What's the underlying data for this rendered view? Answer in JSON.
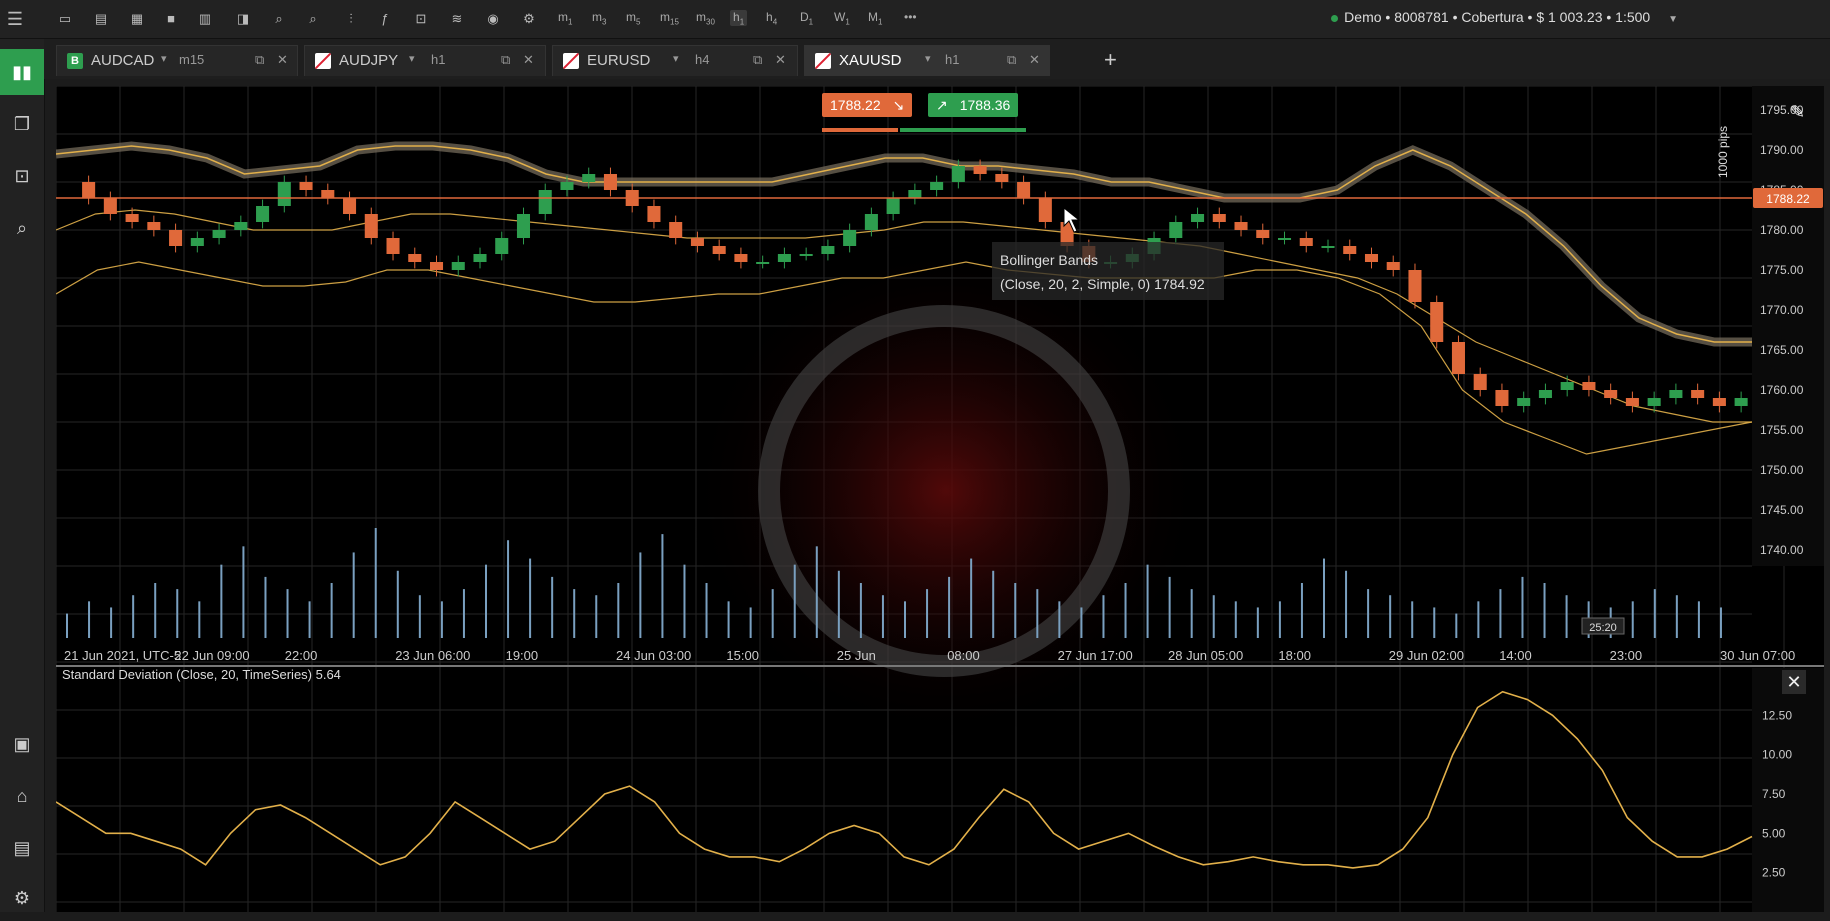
{
  "toolbar": {
    "timeframes": [
      {
        "base": "m",
        "sub": "1"
      },
      {
        "base": "m",
        "sub": "3"
      },
      {
        "base": "m",
        "sub": "5"
      },
      {
        "base": "m",
        "sub": "15"
      },
      {
        "base": "m",
        "sub": "30"
      },
      {
        "base": "h",
        "sub": "1",
        "active": true
      },
      {
        "base": "h",
        "sub": "4"
      },
      {
        "base": "D",
        "sub": "1"
      },
      {
        "base": "W",
        "sub": "1"
      },
      {
        "base": "M",
        "sub": "1"
      }
    ],
    "more_label": "•••",
    "account_text": "Demo • 8008781 • Cobertura • $ 1 003.23 • 1:500",
    "account_dropdown": "▼"
  },
  "tabs": [
    {
      "symbol": "AUDCAD",
      "timeframe": "m15",
      "flag": "B",
      "active": false
    },
    {
      "symbol": "AUDJPY",
      "timeframe": "h1",
      "active": false
    },
    {
      "symbol": "EURUSD",
      "timeframe": "h4",
      "active": false
    },
    {
      "symbol": "XAUUSD",
      "timeframe": "h1",
      "active": true
    }
  ],
  "add_tab_label": "+",
  "chart": {
    "sell_price": "1788.22",
    "buy_price": "1788.36",
    "current_price_label": "1788.22",
    "pips_label": "1000 pips",
    "tooltip": {
      "title": "Bollinger Bands",
      "params": "(Close, 20, 2, Simple, 0)",
      "value": "1784.92"
    },
    "crosshair_time": "25:20",
    "price_ticks": [
      "1795.00",
      "1790.00",
      "1785.00",
      "1780.00",
      "1775.00",
      "1770.00",
      "1765.00",
      "1760.00",
      "1755.00",
      "1750.00",
      "1745.00",
      "1740.00"
    ],
    "time_labels": [
      "21 Jun 2021, UTC-5",
      "22 Jun 09:00",
      "22:00",
      "23 Jun 06:00",
      "19:00",
      "24 Jun 03:00",
      "15:00",
      "25 Jun",
      "08:00",
      "27 Jun 17:00",
      "28 Jun 05:00",
      "18:00",
      "29 Jun 02:00",
      "14:00",
      "23:00",
      "30 Jun 07:00"
    ],
    "indicator_label": "Standard Deviation (Close, 20, TimeSeries) 5.64",
    "indicator_ticks": [
      "12.50",
      "10.00",
      "7.50",
      "5.00",
      "2.50"
    ],
    "colors": {
      "bull": "#2e9e4f",
      "bear": "#e0693a",
      "band": "#e2b04a",
      "volume": "#7aa0c0",
      "price_line": "#e0693a"
    }
  },
  "chart_data": {
    "type": "candlestick",
    "symbol": "XAUUSD",
    "timeframe": "h1",
    "ylim": [
      1738,
      1798
    ],
    "price_series": [
      1786,
      1784,
      1782,
      1781,
      1780,
      1778,
      1779,
      1780,
      1781,
      1783,
      1786,
      1785,
      1784,
      1782,
      1779,
      1777,
      1776,
      1775,
      1776,
      1777,
      1779,
      1782,
      1785,
      1786,
      1787,
      1785,
      1783,
      1781,
      1779,
      1778,
      1777,
      1776,
      1776,
      1777,
      1777,
      1778,
      1780,
      1782,
      1784,
      1785,
      1786,
      1788,
      1787,
      1786,
      1784,
      1781,
      1778,
      1776,
      1776,
      1777,
      1779,
      1781,
      1782,
      1781,
      1780,
      1779,
      1779,
      1778,
      1778,
      1777,
      1776,
      1775,
      1771,
      1766,
      1762,
      1760,
      1758,
      1759,
      1760,
      1761,
      1760,
      1759,
      1758,
      1759,
      1760,
      1759,
      1758,
      1759
    ],
    "bollinger_upper": [
      1789.5,
      1790,
      1790.5,
      1790,
      1789,
      1787,
      1787.5,
      1788,
      1790,
      1790.5,
      1790.5,
      1790,
      1789,
      1787,
      1786,
      1786,
      1786,
      1786,
      1786,
      1786,
      1787,
      1788,
      1789,
      1789,
      1788,
      1788,
      1787.5,
      1787,
      1786,
      1786,
      1785,
      1784,
      1784,
      1784,
      1785,
      1788,
      1790,
      1788,
      1785,
      1782,
      1778,
      1773,
      1769,
      1767,
      1766,
      1766
    ],
    "bollinger_middle": [
      1780,
      1782,
      1782.5,
      1782,
      1781,
      1780,
      1780,
      1780,
      1781,
      1782,
      1782,
      1781.5,
      1781,
      1780.5,
      1780,
      1779.5,
      1779,
      1779,
      1779,
      1779,
      1779.5,
      1780,
      1781,
      1781,
      1780.5,
      1780,
      1779.5,
      1779,
      1778.5,
      1778,
      1777,
      1776,
      1775,
      1774,
      1772,
      1769,
      1766,
      1764,
      1762,
      1760,
      1758,
      1757,
      1756,
      1756
    ],
    "bollinger_lower": [
      1772,
      1775,
      1776,
      1775,
      1774,
      1773,
      1773,
      1773.5,
      1775,
      1775,
      1774,
      1773,
      1772,
      1771,
      1771,
      1771.5,
      1772,
      1772,
      1773,
      1774,
      1774,
      1775,
      1776,
      1775,
      1774.5,
      1774,
      1774,
      1774,
      1774,
      1775,
      1775,
      1774,
      1772,
      1768,
      1760,
      1756,
      1754,
      1752,
      1753,
      1754,
      1755,
      1756
    ],
    "volume": [
      4,
      6,
      5,
      7,
      9,
      8,
      6,
      12,
      15,
      10,
      8,
      6,
      9,
      14,
      18,
      11,
      7,
      6,
      8,
      12,
      16,
      13,
      10,
      8,
      7,
      9,
      14,
      17,
      12,
      9,
      6,
      5,
      8,
      12,
      15,
      11,
      9,
      7,
      6,
      8,
      10,
      13,
      11,
      9,
      8,
      6,
      5,
      7,
      9,
      12,
      10,
      8,
      7,
      6,
      5,
      6,
      9,
      13,
      11,
      8,
      7,
      6,
      5,
      4,
      6,
      8,
      10,
      9,
      7,
      6,
      5,
      6,
      8,
      7,
      6,
      5
    ],
    "stddev": [
      7,
      6,
      5,
      5,
      4.5,
      4,
      3,
      5,
      6.5,
      6.8,
      6,
      5,
      4,
      3,
      3.5,
      5,
      7,
      6,
      5,
      4,
      4.5,
      6,
      7.5,
      8,
      7,
      5,
      4,
      3.5,
      3.5,
      3.2,
      4,
      5,
      5.5,
      5,
      3.5,
      3,
      4,
      6,
      7.8,
      7,
      5,
      4,
      4.5,
      5,
      4.2,
      3.5,
      3,
      3.2,
      3.5,
      3.2,
      3,
      3,
      2.8,
      3,
      4,
      6,
      10,
      13,
      14,
      13.5,
      12.5,
      11,
      9,
      6,
      4.5,
      3.5,
      3.5,
      4,
      4.8
    ]
  }
}
